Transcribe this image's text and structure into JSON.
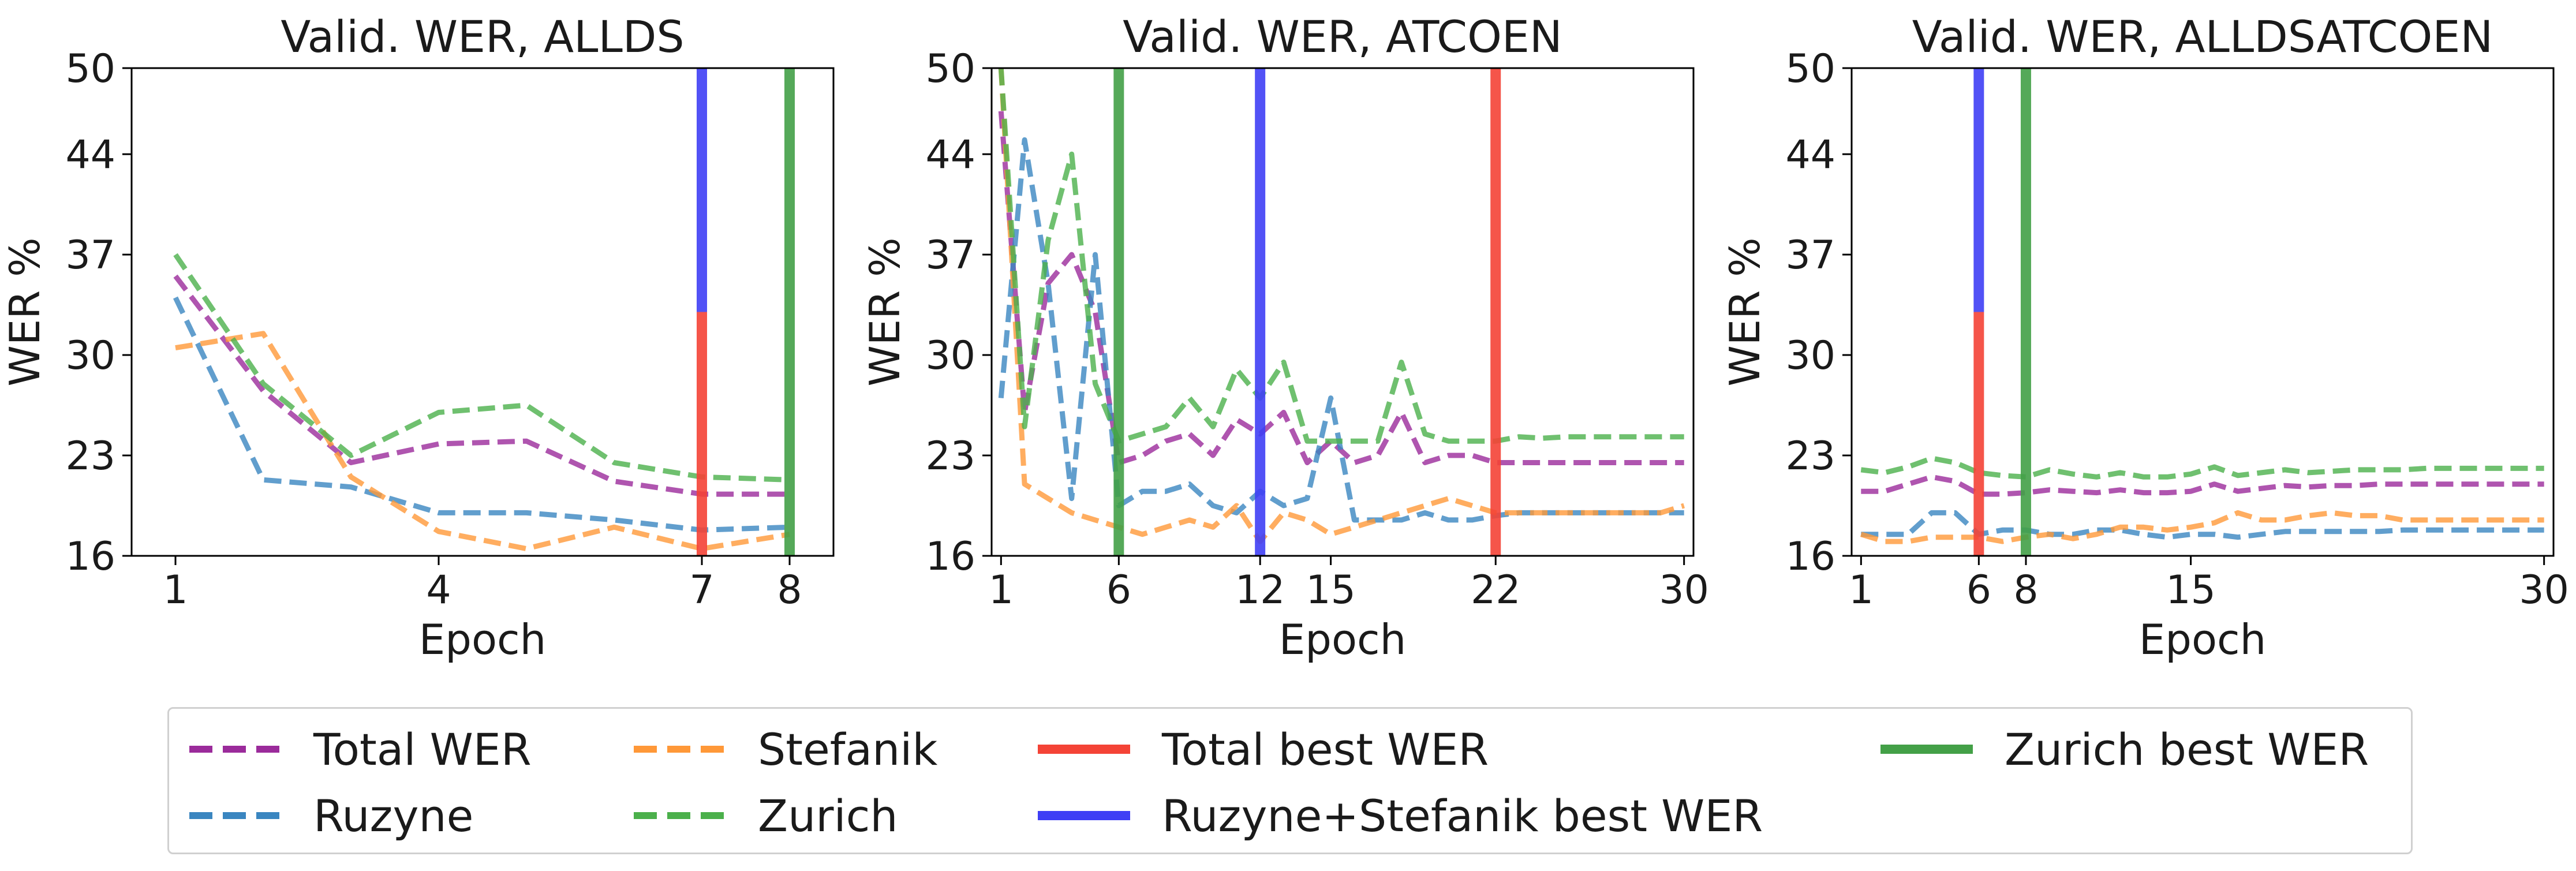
{
  "chart_data": [
    {
      "type": "line",
      "title": "Valid. WER, ALLDS",
      "xlabel": "Epoch",
      "ylabel": "WER %",
      "xlim": [
        0.5,
        8.5
      ],
      "ylim": [
        16,
        50
      ],
      "xticks": [
        1,
        4,
        7,
        8
      ],
      "yticks": [
        16,
        23,
        30,
        37,
        44,
        50
      ],
      "series": [
        {
          "name": "Total WER",
          "x": [
            1,
            2,
            3,
            4,
            5,
            6,
            7,
            8
          ],
          "values": [
            35.5,
            27.5,
            22.5,
            23.8,
            24.0,
            21.2,
            20.3,
            20.3
          ]
        },
        {
          "name": "Ruzyne",
          "x": [
            1,
            2,
            3,
            4,
            5,
            6,
            7,
            8
          ],
          "values": [
            34.0,
            21.3,
            20.8,
            19.0,
            19.0,
            18.5,
            17.8,
            18.0
          ]
        },
        {
          "name": "Stefanik",
          "x": [
            1,
            2,
            3,
            4,
            5,
            6,
            7,
            8
          ],
          "values": [
            30.5,
            31.5,
            21.5,
            17.7,
            16.5,
            18.0,
            16.5,
            17.5
          ]
        },
        {
          "name": "Zurich",
          "x": [
            1,
            2,
            3,
            4,
            5,
            6,
            7,
            8
          ],
          "values": [
            37.0,
            28.0,
            23.0,
            26.0,
            26.5,
            22.5,
            21.5,
            21.3
          ]
        }
      ],
      "vlines": [
        {
          "name": "Total best WER",
          "x": 7,
          "y_range": [
            16,
            33
          ],
          "color": "#f44336"
        },
        {
          "name": "Ruzyne+Stefanik best WER",
          "x": 7,
          "y_range": [
            33,
            50
          ],
          "color": "#3f3ff5"
        },
        {
          "name": "Zurich best WER",
          "x": 8,
          "y_range": [
            16,
            50
          ],
          "color": "#43a047"
        }
      ]
    },
    {
      "type": "line",
      "title": "Valid. WER, ATCOEN",
      "xlabel": "Epoch",
      "ylabel": "WER %",
      "xlim": [
        0.6,
        30.4
      ],
      "ylim": [
        16,
        50
      ],
      "xticks": [
        1,
        6,
        12,
        15,
        22,
        30
      ],
      "yticks": [
        16,
        23,
        30,
        37,
        44,
        50
      ],
      "series": [
        {
          "name": "Total WER",
          "x": [
            1,
            2,
            3,
            4,
            5,
            6,
            7,
            8,
            9,
            10,
            11,
            12,
            13,
            14,
            15,
            16,
            17,
            18,
            19,
            20,
            21,
            22,
            23,
            24,
            25,
            26,
            27,
            28,
            29,
            30
          ],
          "values": [
            47,
            26,
            35,
            37,
            33,
            22.5,
            23,
            24,
            24.5,
            23,
            25.5,
            24.5,
            26,
            22.5,
            24,
            22.5,
            23,
            26,
            22.5,
            23,
            23,
            22.5,
            22.5,
            22.5,
            22.5,
            22.5,
            22.5,
            22.5,
            22.5,
            22.5
          ]
        },
        {
          "name": "Ruzyne",
          "x": [
            1,
            2,
            3,
            4,
            5,
            6,
            7,
            8,
            9,
            10,
            11,
            12,
            13,
            14,
            15,
            16,
            17,
            18,
            19,
            20,
            21,
            22,
            23,
            24,
            25,
            26,
            27,
            28,
            29,
            30
          ],
          "values": [
            27,
            45,
            35,
            20,
            37,
            19.5,
            20.5,
            20.5,
            21,
            19.5,
            19,
            20.5,
            19.5,
            20,
            27,
            18.5,
            18.5,
            18.5,
            19,
            18.5,
            18.5,
            18.8,
            19,
            19,
            19,
            19,
            19,
            19,
            19,
            19
          ]
        },
        {
          "name": "Stefanik",
          "x": [
            1,
            2,
            3,
            4,
            5,
            6,
            7,
            8,
            9,
            10,
            11,
            12,
            13,
            14,
            15,
            16,
            17,
            18,
            19,
            20,
            21,
            22,
            23,
            24,
            25,
            26,
            27,
            28,
            29,
            30
          ],
          "values": [
            50,
            21,
            20,
            19,
            18.5,
            18,
            17.5,
            18,
            18.5,
            18,
            19.5,
            17,
            19,
            18.5,
            17.5,
            18,
            18.5,
            19,
            19.5,
            20,
            19.5,
            19,
            19,
            19,
            19,
            19,
            19,
            19,
            19,
            19.5
          ]
        },
        {
          "name": "Zurich",
          "x": [
            1,
            2,
            3,
            4,
            5,
            6,
            7,
            8,
            9,
            10,
            11,
            12,
            13,
            14,
            15,
            16,
            17,
            18,
            19,
            20,
            21,
            22,
            23,
            24,
            25,
            26,
            27,
            28,
            29,
            30
          ],
          "values": [
            50,
            25,
            38,
            44,
            28,
            24,
            24.5,
            25,
            27,
            25,
            29,
            27,
            29.5,
            24,
            24,
            24,
            24,
            29.5,
            24.5,
            24,
            24,
            24,
            24.3,
            24.2,
            24.3,
            24.3,
            24.3,
            24.3,
            24.3,
            24.3
          ]
        }
      ],
      "vlines": [
        {
          "name": "Zurich best WER",
          "x": 6,
          "y_range": [
            16,
            50
          ],
          "color": "#43a047"
        },
        {
          "name": "Ruzyne+Stefanik best WER",
          "x": 12,
          "y_range": [
            16,
            50
          ],
          "color": "#3f3ff5"
        },
        {
          "name": "Total best WER",
          "x": 22,
          "y_range": [
            16,
            50
          ],
          "color": "#f44336"
        }
      ]
    },
    {
      "type": "line",
      "title": "Valid. WER, ALLDSATCOEN",
      "xlabel": "Epoch",
      "ylabel": "WER %",
      "xlim": [
        0.6,
        30.4
      ],
      "ylim": [
        16,
        50
      ],
      "xticks": [
        1,
        6,
        8,
        15,
        30
      ],
      "yticks": [
        16,
        23,
        30,
        37,
        44,
        50
      ],
      "series": [
        {
          "name": "Total WER",
          "x": [
            1,
            2,
            3,
            4,
            5,
            6,
            7,
            8,
            9,
            10,
            11,
            12,
            13,
            14,
            15,
            16,
            17,
            18,
            19,
            20,
            21,
            22,
            23,
            24,
            25,
            26,
            27,
            28,
            29,
            30
          ],
          "values": [
            20.5,
            20.5,
            21,
            21.5,
            21.2,
            20.3,
            20.3,
            20.4,
            20.6,
            20.5,
            20.4,
            20.6,
            20.4,
            20.4,
            20.5,
            21,
            20.5,
            20.7,
            20.9,
            20.8,
            20.9,
            20.9,
            21,
            21,
            21,
            21,
            21,
            21,
            21,
            21
          ]
        },
        {
          "name": "Ruzyne",
          "x": [
            1,
            2,
            3,
            4,
            5,
            6,
            7,
            8,
            9,
            10,
            11,
            12,
            13,
            14,
            15,
            16,
            17,
            18,
            19,
            20,
            21,
            22,
            23,
            24,
            25,
            26,
            27,
            28,
            29,
            30
          ],
          "values": [
            17.5,
            17.5,
            17.5,
            19,
            19,
            17.5,
            17.8,
            17.8,
            17.5,
            17.5,
            17.8,
            17.8,
            17.5,
            17.3,
            17.5,
            17.5,
            17.3,
            17.5,
            17.7,
            17.7,
            17.7,
            17.7,
            17.7,
            17.8,
            17.8,
            17.8,
            17.8,
            17.8,
            17.8,
            17.8
          ]
        },
        {
          "name": "Stefanik",
          "x": [
            1,
            2,
            3,
            4,
            5,
            6,
            7,
            8,
            9,
            10,
            11,
            12,
            13,
            14,
            15,
            16,
            17,
            18,
            19,
            20,
            21,
            22,
            23,
            24,
            25,
            26,
            27,
            28,
            29,
            30
          ],
          "values": [
            17.5,
            17,
            17,
            17.3,
            17.3,
            17.3,
            17,
            17.3,
            17.5,
            17.2,
            17.5,
            18,
            18,
            17.8,
            18,
            18.3,
            19,
            18.5,
            18.5,
            18.8,
            19,
            18.8,
            18.8,
            18.5,
            18.5,
            18.5,
            18.5,
            18.5,
            18.5,
            18.5
          ]
        },
        {
          "name": "Zurich",
          "x": [
            1,
            2,
            3,
            4,
            5,
            6,
            7,
            8,
            9,
            10,
            11,
            12,
            13,
            14,
            15,
            16,
            17,
            18,
            19,
            20,
            21,
            22,
            23,
            24,
            25,
            26,
            27,
            28,
            29,
            30
          ],
          "values": [
            22,
            21.8,
            22.2,
            22.8,
            22.5,
            21.8,
            21.6,
            21.5,
            22,
            21.7,
            21.5,
            21.8,
            21.5,
            21.5,
            21.7,
            22.2,
            21.6,
            21.8,
            22,
            21.8,
            21.9,
            22,
            22,
            22,
            22.1,
            22.1,
            22.1,
            22.1,
            22.1,
            22.1
          ]
        }
      ],
      "vlines": [
        {
          "name": "Total best WER",
          "x": 6,
          "y_range": [
            16,
            33
          ],
          "color": "#f44336"
        },
        {
          "name": "Ruzyne+Stefanik best WER",
          "x": 6,
          "y_range": [
            33,
            50
          ],
          "color": "#3f3ff5"
        },
        {
          "name": "Zurich best WER",
          "x": 8,
          "y_range": [
            16,
            50
          ],
          "color": "#43a047"
        }
      ]
    }
  ],
  "series_colors": {
    "Total WER": "#9b2b9b",
    "Ruzyne": "#3a86c0",
    "Stefanik": "#ff9838",
    "Zurich": "#4bb04b"
  },
  "legend": {
    "placement": "bottom",
    "items": [
      {
        "label": "Total WER",
        "style": "dashed",
        "color": "#9b2b9b"
      },
      {
        "label": "Ruzyne",
        "style": "dashed",
        "color": "#3a86c0"
      },
      {
        "label": "Stefanik",
        "style": "dashed",
        "color": "#ff9838"
      },
      {
        "label": "Zurich",
        "style": "dashed",
        "color": "#4bb04b"
      },
      {
        "label": "Total best WER",
        "style": "solid",
        "color": "#f44336"
      },
      {
        "label": "Ruzyne+Stefanik best WER",
        "style": "solid",
        "color": "#3f3ff5"
      },
      {
        "label": "Zurich best WER",
        "style": "solid",
        "color": "#43a047"
      }
    ]
  }
}
